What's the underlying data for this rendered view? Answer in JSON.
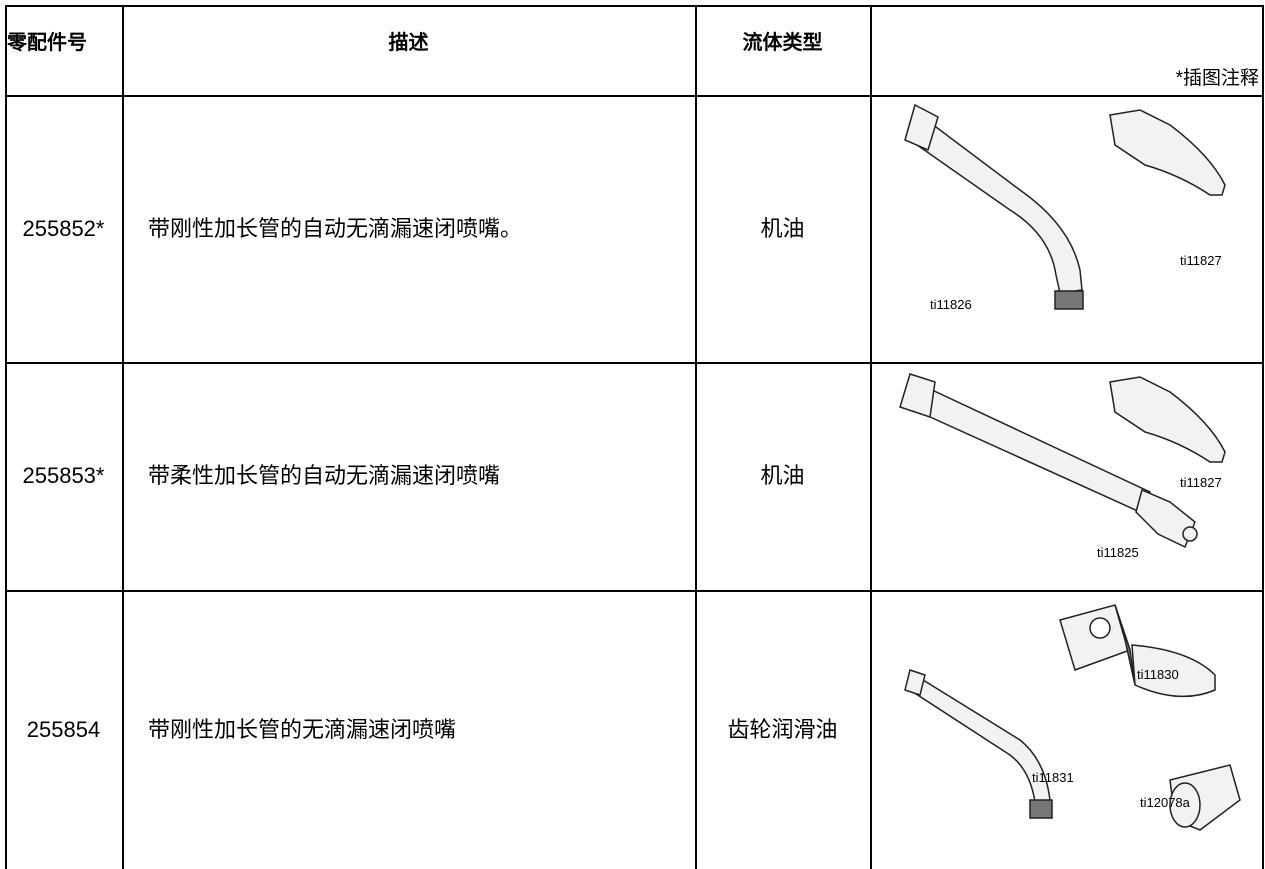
{
  "header": {
    "part_no": "零配件号",
    "description": "描述",
    "fluid": "流体类型",
    "note": "*插图注释"
  },
  "rows": [
    {
      "part": "255852*",
      "description": "带刚性加长管的自动无滴漏速闭喷嘴。",
      "fluid": "机油",
      "figures": [
        "ti11826",
        "ti11827"
      ]
    },
    {
      "part": "255853*",
      "description": "带柔性加长管的自动无滴漏速闭喷嘴",
      "fluid": "机油",
      "figures": [
        "ti11827",
        "ti11825"
      ]
    },
    {
      "part": "255854",
      "description": "带刚性加长管的无滴漏速闭喷嘴",
      "fluid": "齿轮润滑油",
      "figures": [
        "ti11830",
        "ti11831",
        "ti12078a"
      ]
    }
  ]
}
